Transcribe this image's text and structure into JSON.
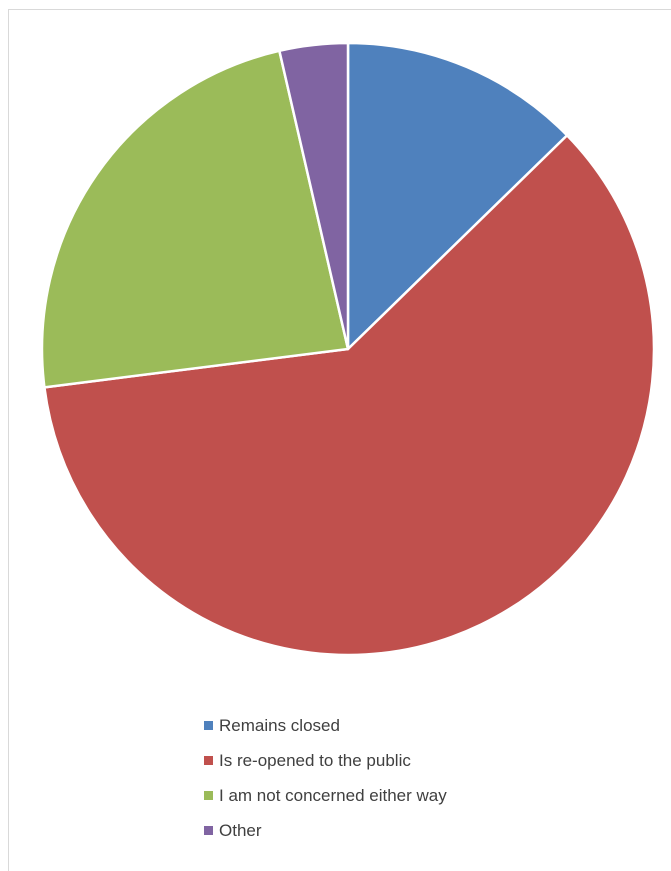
{
  "chart_data": {
    "type": "pie",
    "title": "",
    "start_angle_deg": 0,
    "direction": "clockwise",
    "slices": [
      {
        "label": "Remains closed",
        "value": 12.7,
        "color": "#4f81bd"
      },
      {
        "label": "Is re-opened to the public",
        "value": 60.3,
        "color": "#c0504d"
      },
      {
        "label": "I am not concerned either way",
        "value": 23.4,
        "color": "#9bbb59"
      },
      {
        "label": "Other",
        "value": 3.6,
        "color": "#8064a2"
      }
    ],
    "legend": {
      "position": "bottom",
      "entries": [
        "Remains closed",
        "Is re-opened to the public",
        "I am not concerned either way",
        "Other"
      ]
    }
  }
}
